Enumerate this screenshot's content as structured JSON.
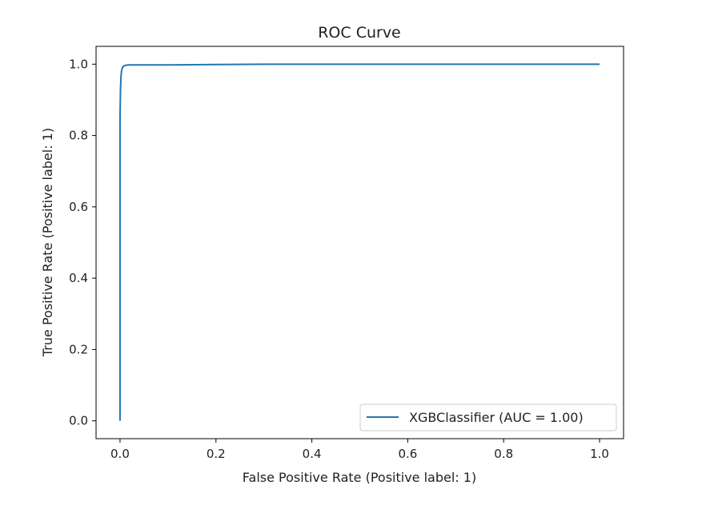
{
  "chart_data": {
    "type": "line",
    "title": "ROC Curve",
    "xlabel": "False Positive Rate (Positive label: 1)",
    "ylabel": "True Positive Rate (Positive label: 1)",
    "xlim": [
      -0.05,
      1.05
    ],
    "ylim": [
      -0.05,
      1.05
    ],
    "xticks": [
      0.0,
      0.2,
      0.4,
      0.6,
      0.8,
      1.0
    ],
    "xtick_labels": [
      "0.0",
      "0.2",
      "0.4",
      "0.6",
      "0.8",
      "1.0"
    ],
    "yticks": [
      0.0,
      0.2,
      0.4,
      0.6,
      0.8,
      1.0
    ],
    "ytick_labels": [
      "0.0",
      "0.2",
      "0.4",
      "0.6",
      "0.8",
      "1.0"
    ],
    "grid": false,
    "legend": {
      "position": "lower-right",
      "entries": [
        "XGBClassifier (AUC = 1.00)"
      ]
    },
    "series": [
      {
        "name": "XGBClassifier (AUC = 1.00)",
        "color": "#1f77b4",
        "x": [
          0.0,
          0.0,
          0.001,
          0.002,
          0.003,
          0.005,
          0.008,
          0.012,
          0.02,
          0.05,
          0.1,
          0.2,
          0.3,
          0.5,
          0.7,
          1.0
        ],
        "y": [
          0.0,
          0.85,
          0.93,
          0.965,
          0.98,
          0.99,
          0.995,
          0.997,
          0.998,
          0.998,
          0.998,
          0.999,
          1.0,
          1.0,
          1.0,
          1.0
        ]
      }
    ]
  }
}
